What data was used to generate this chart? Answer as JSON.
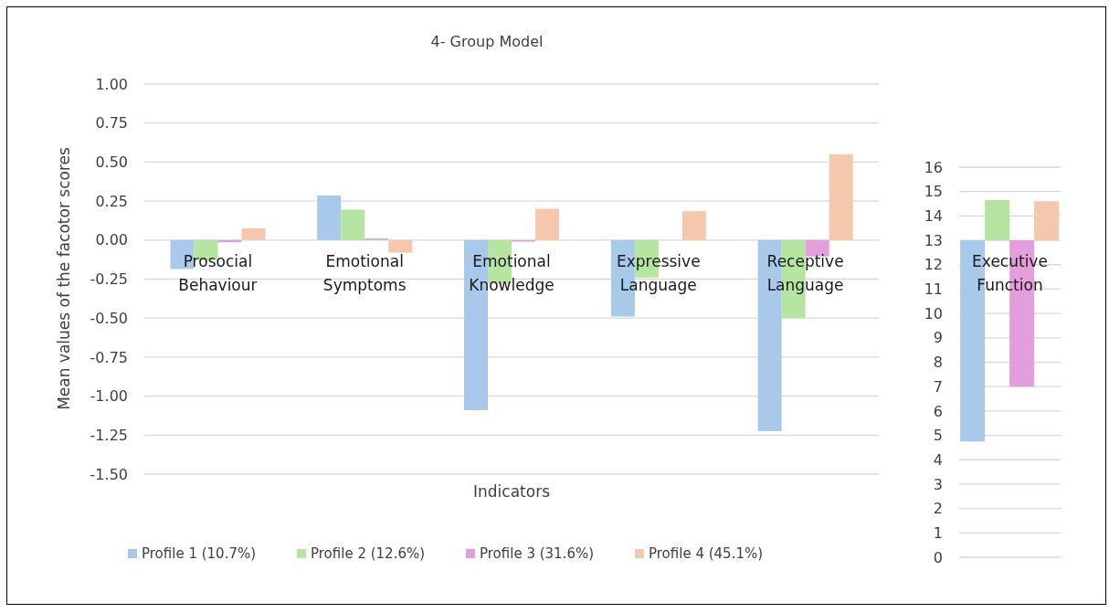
{
  "chart_data": [
    {
      "type": "bar",
      "title": "4- Group Model",
      "xlabel": "Indicators",
      "ylabel": "Mean values of the facotor scores",
      "categories": [
        "Prosocial Behaviour",
        "Emotional Symptoms",
        "Emotional Knowledge",
        "Expressive Language",
        "Receptive Language"
      ],
      "series": [
        {
          "name": "Profile 1 (10.7%)",
          "color": "#a8c9ea",
          "values": [
            -0.185,
            0.285,
            -1.09,
            -0.49,
            -1.225
          ]
        },
        {
          "name": "Profile 2 (12.6%)",
          "color": "#b5e5a0",
          "values": [
            -0.13,
            0.195,
            -0.28,
            -0.24,
            -0.5
          ]
        },
        {
          "name": "Profile 3 (31.6%)",
          "color": "#e49edb",
          "values": [
            -0.015,
            0.01,
            -0.01,
            0,
            -0.105
          ]
        },
        {
          "name": "Profile 4 (45.1%)",
          "color": "#f5c7ad",
          "values": [
            0.075,
            -0.08,
            0.2,
            0.185,
            0.55
          ]
        }
      ],
      "ylim": [
        -1.5,
        1
      ],
      "yticks": [
        {
          "value": 1,
          "label": "1.00"
        },
        0.75,
        {
          "value": 0.5,
          "label": "0.50"
        },
        0.25,
        {
          "value": 0,
          "label": "0.00"
        },
        -0.25,
        {
          "value": -0.5,
          "label": "-0.50"
        },
        -0.75,
        {
          "value": -1,
          "label": "-1.00"
        },
        -1.25,
        {
          "value": -1.5,
          "label": "-1.50"
        }
      ],
      "grid": "y",
      "legend": "bottom"
    },
    {
      "type": "bar",
      "categories": [
        "Executive Function"
      ],
      "series": [
        {
          "color": "#a8c9ea",
          "values": [
            -8.25
          ],
          "base": [
            13
          ]
        },
        {
          "color": "#b5e5a0",
          "values": [
            1.65
          ],
          "base": [
            13
          ]
        },
        {
          "color": "#e49edb",
          "values": [
            -6
          ],
          "base": [
            13
          ]
        },
        {
          "color": "#f5c7ad",
          "values": [
            1.6
          ],
          "base": [
            13
          ]
        }
      ],
      "ylim": [
        0,
        16
      ],
      "yticks": [
        0,
        1,
        2,
        3,
        4,
        5,
        6,
        7,
        8,
        9,
        10,
        11,
        12,
        13,
        14,
        15,
        16
      ],
      "grid": "y"
    }
  ]
}
